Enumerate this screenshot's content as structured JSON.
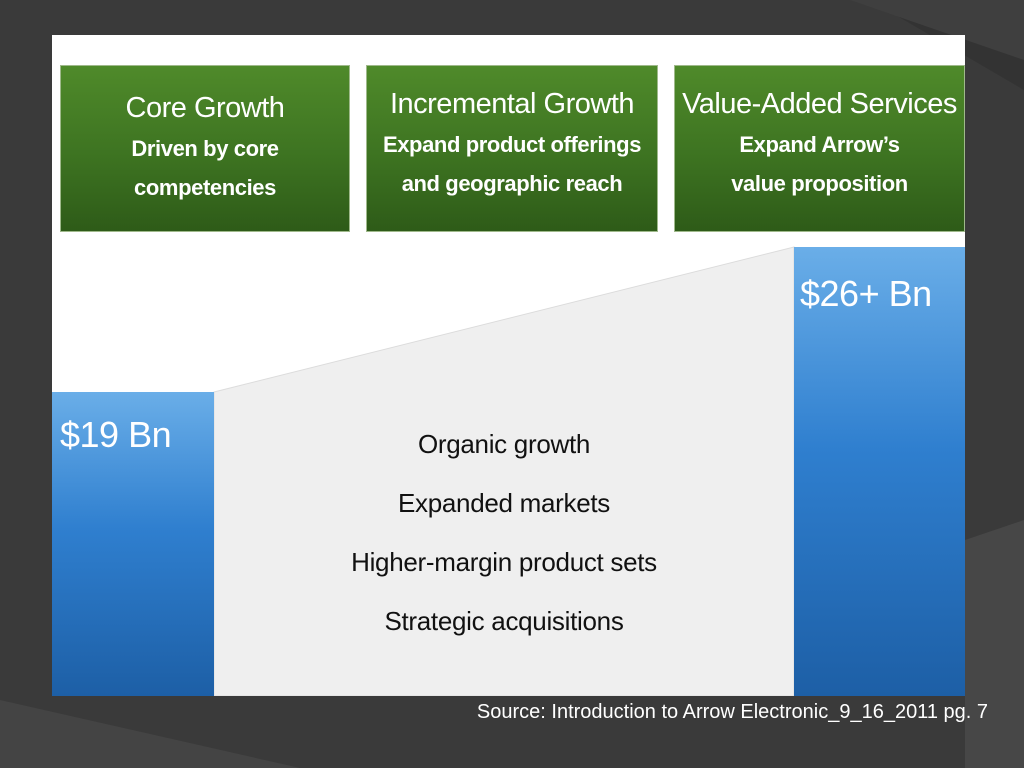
{
  "categories": [
    {
      "title": "Core Growth",
      "lines": [
        "Driven by core",
        "competencies"
      ]
    },
    {
      "title": "Incremental Growth",
      "lines": [
        "Expand product offerings",
        "and geographic reach"
      ]
    },
    {
      "title": "Value-Added Services",
      "lines": [
        "Expand Arrow’s",
        "value proposition"
      ]
    }
  ],
  "bars": {
    "start": {
      "label": "$19 Bn"
    },
    "end": {
      "label": "$26+ Bn"
    }
  },
  "drivers": [
    "Organic growth",
    "Expanded markets",
    "Higher-margin product sets",
    "Strategic acquisitions"
  ],
  "source": "Source: Introduction to Arrow Electronic_9_16_2011 pg. 7",
  "colors": {
    "background": "#3a3a3a",
    "green": "#3d7321",
    "blue": "#2f7fcf",
    "wedge": "#efefef"
  }
}
